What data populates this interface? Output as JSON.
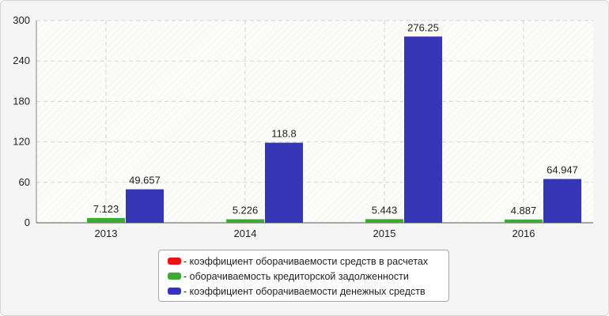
{
  "chart_data": {
    "type": "bar",
    "categories": [
      "2013",
      "2014",
      "2015",
      "2016"
    ],
    "series": [
      {
        "name": "коэффициент оборачиваемости средств в расчетах",
        "color": "#ee1111",
        "values": [
          0,
          0,
          0,
          0
        ],
        "labels": [
          "",
          "",
          "",
          ""
        ]
      },
      {
        "name": "оборачиваемость кредиторской задолженности",
        "color": "#3cab34",
        "values": [
          7.123,
          5.226,
          5.443,
          4.887
        ],
        "labels": [
          "7.123",
          "5.226",
          "5.443",
          "4.887"
        ]
      },
      {
        "name": "коэффициент оборачиваемости денежных средств",
        "color": "#3535b5",
        "values": [
          49.657,
          118.8,
          276.25,
          64.947
        ],
        "labels": [
          "49.657",
          "118.8",
          "276.25",
          "64.947"
        ]
      }
    ],
    "yticks": [
      "0",
      "60",
      "120",
      "180",
      "240",
      "300"
    ],
    "ylim": [
      0,
      300
    ],
    "grid": true,
    "legend_position": "bottom",
    "legend_prefix": "- "
  }
}
